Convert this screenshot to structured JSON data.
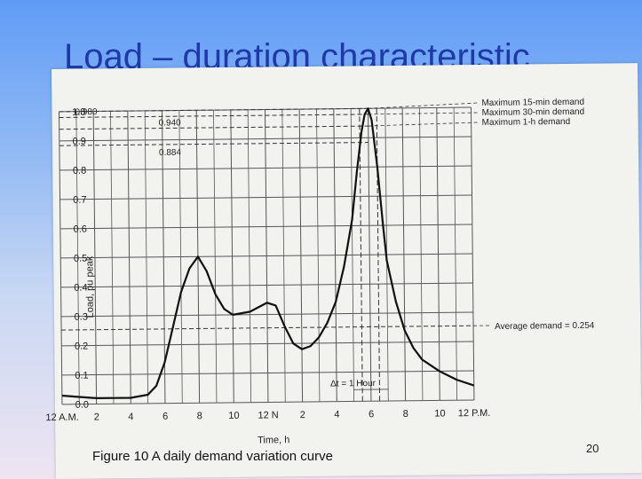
{
  "slide": {
    "title": "Load – duration characteristic",
    "caption": "Figure 10 A daily demand variation curve",
    "page_number": "20"
  },
  "chart_data": {
    "type": "line",
    "title": "",
    "xlabel": "Time, h",
    "ylabel": "Load, pu peak",
    "x_ticks": [
      "12 A.M.",
      "2",
      "4",
      "6",
      "8",
      "10",
      "12 N",
      "2",
      "4",
      "6",
      "8",
      "10",
      "12 P.M."
    ],
    "x_tick_hours": [
      0,
      2,
      4,
      6,
      8,
      10,
      12,
      14,
      16,
      18,
      20,
      22,
      24
    ],
    "y_ticks": [
      "0.0",
      "0.1",
      "0.2",
      "0.3",
      "0.4",
      "0.5",
      "0.6",
      "0.7",
      "0.8",
      "0.9",
      "1.0"
    ],
    "y_tick_values": [
      0,
      0.1,
      0.2,
      0.3,
      0.4,
      0.5,
      0.6,
      0.7,
      0.8,
      0.9,
      1.0
    ],
    "xlim": [
      0,
      24
    ],
    "ylim": [
      0,
      1.0
    ],
    "grid": true,
    "series": [
      {
        "x": [
          0,
          1,
          2,
          3,
          4,
          5,
          5.5,
          6,
          6.5,
          7,
          7.5,
          8,
          8.5,
          9,
          9.5,
          10,
          11,
          12,
          12.5,
          13,
          13.5,
          14,
          14.5,
          15,
          15.5,
          16,
          16.5,
          17,
          17.3,
          17.6,
          17.8,
          18,
          18.2,
          18.5,
          18.8,
          19,
          19.5,
          20,
          20.5,
          21,
          22,
          23,
          24
        ],
        "y": [
          0.03,
          0.025,
          0.02,
          0.02,
          0.02,
          0.03,
          0.06,
          0.14,
          0.26,
          0.38,
          0.46,
          0.5,
          0.45,
          0.37,
          0.32,
          0.3,
          0.31,
          0.34,
          0.33,
          0.26,
          0.2,
          0.18,
          0.19,
          0.22,
          0.27,
          0.34,
          0.46,
          0.62,
          0.78,
          0.92,
          0.98,
          1.0,
          0.96,
          0.8,
          0.6,
          0.48,
          0.34,
          0.24,
          0.18,
          0.14,
          0.1,
          0.07,
          0.05
        ]
      }
    ],
    "reference_lines": [
      {
        "value": 1.0,
        "label": "Maximum 15-min demand"
      },
      {
        "value": 0.98,
        "tick_label": "0.980",
        "label": "Maximum 30-min demand"
      },
      {
        "value": 0.94,
        "tick_label": "0.940",
        "label": "Maximum 1-h demand"
      },
      {
        "value": 0.884,
        "tick_label": "0.884"
      },
      {
        "value": 0.254,
        "label": "Average demand = 0.254"
      }
    ],
    "annotations": [
      {
        "text": "Δt = 1 Hour",
        "x_range": [
          17.5,
          18.5
        ]
      }
    ]
  }
}
